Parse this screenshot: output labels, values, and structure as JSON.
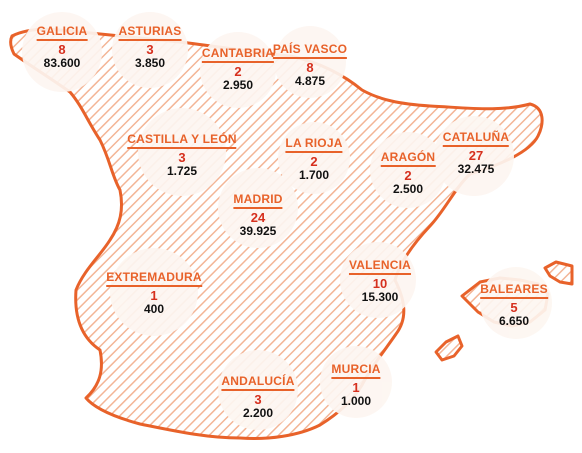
{
  "map": {
    "colors": {
      "outline": "#e8622a",
      "hatch": "#f3b596",
      "bubble": "#fdf6f1",
      "label": "#e8622a",
      "count": "#d6301e",
      "value": "#111111"
    },
    "regions": [
      {
        "id": "galicia",
        "name": "GALICIA",
        "count": "8",
        "value": "83.600"
      },
      {
        "id": "asturias",
        "name": "ASTURIAS",
        "count": "3",
        "value": "3.850"
      },
      {
        "id": "cantabria",
        "name": "CANTABRIA",
        "count": "2",
        "value": "2.950"
      },
      {
        "id": "pais-vasco",
        "name": "PAÍS VASCO",
        "count": "8",
        "value": "4.875"
      },
      {
        "id": "castilla-y-leon",
        "name": "CASTILLA Y LEÓN",
        "count": "3",
        "value": "1.725"
      },
      {
        "id": "la-rioja",
        "name": "LA RIOJA",
        "count": "2",
        "value": "1.700"
      },
      {
        "id": "aragon",
        "name": "ARAGÓN",
        "count": "2",
        "value": "2.500"
      },
      {
        "id": "cataluna",
        "name": "CATALUÑA",
        "count": "27",
        "value": "32.475"
      },
      {
        "id": "madrid",
        "name": "MADRID",
        "count": "24",
        "value": "39.925"
      },
      {
        "id": "extremadura",
        "name": "EXTREMADURA",
        "count": "1",
        "value": "400"
      },
      {
        "id": "valencia",
        "name": "VALENCIA",
        "count": "10",
        "value": "15.300"
      },
      {
        "id": "baleares",
        "name": "BALEARES",
        "count": "5",
        "value": "6.650"
      },
      {
        "id": "andalucia",
        "name": "ANDALUCÍA",
        "count": "3",
        "value": "2.200"
      },
      {
        "id": "murcia",
        "name": "MURCIA",
        "count": "1",
        "value": "1.000"
      }
    ]
  }
}
